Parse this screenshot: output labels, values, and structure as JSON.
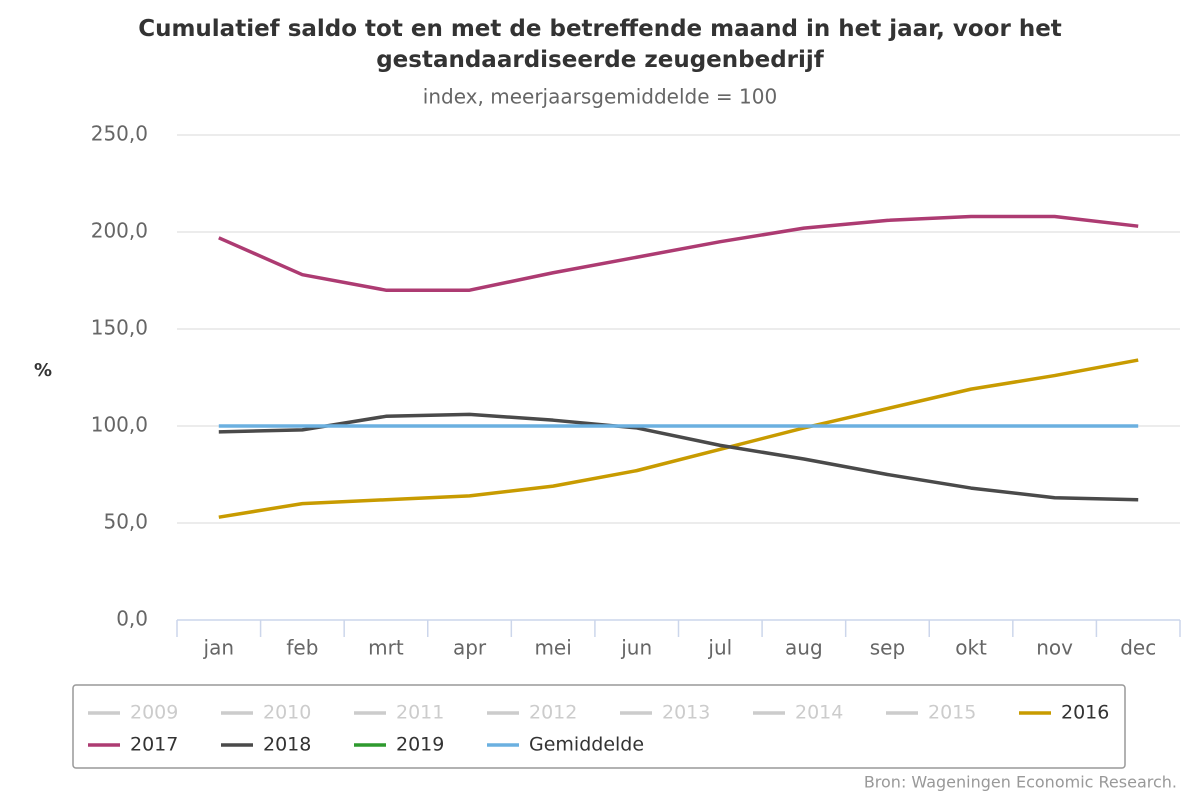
{
  "chart_data": {
    "type": "line",
    "title": "Cumulatief saldo tot en met de betreffende maand in het jaar, voor het gestandaardiseerde zeugenbedrijf",
    "subtitle": "index, meerjaarsgemiddelde = 100",
    "y_label": "%",
    "source": "Bron: Wageningen Economic Research.",
    "categories": [
      "jan",
      "feb",
      "mrt",
      "apr",
      "mei",
      "jun",
      "jul",
      "aug",
      "sep",
      "okt",
      "nov",
      "dec"
    ],
    "ylim": [
      0,
      250
    ],
    "yticks": [
      {
        "value": 0,
        "label": "0,0"
      },
      {
        "value": 50,
        "label": "50,0"
      },
      {
        "value": 100,
        "label": "100,0"
      },
      {
        "value": 150,
        "label": "150,0"
      },
      {
        "value": 200,
        "label": "200,0"
      },
      {
        "value": 250,
        "label": "250,0"
      }
    ],
    "grid": true,
    "legend": "bottom",
    "series": [
      {
        "name": "2009",
        "color": "#cccccc",
        "visible": false,
        "values": [
          null,
          null,
          null,
          null,
          null,
          null,
          null,
          null,
          null,
          null,
          null,
          null
        ]
      },
      {
        "name": "2010",
        "color": "#cccccc",
        "visible": false,
        "values": [
          null,
          null,
          null,
          null,
          null,
          null,
          null,
          null,
          null,
          null,
          null,
          null
        ]
      },
      {
        "name": "2011",
        "color": "#cccccc",
        "visible": false,
        "values": [
          null,
          null,
          null,
          null,
          null,
          null,
          null,
          null,
          null,
          null,
          null,
          null
        ]
      },
      {
        "name": "2012",
        "color": "#cccccc",
        "visible": false,
        "values": [
          null,
          null,
          null,
          null,
          null,
          null,
          null,
          null,
          null,
          null,
          null,
          null
        ]
      },
      {
        "name": "2013",
        "color": "#cccccc",
        "visible": false,
        "values": [
          null,
          null,
          null,
          null,
          null,
          null,
          null,
          null,
          null,
          null,
          null,
          null
        ]
      },
      {
        "name": "2014",
        "color": "#cccccc",
        "visible": false,
        "values": [
          null,
          null,
          null,
          null,
          null,
          null,
          null,
          null,
          null,
          null,
          null,
          null
        ]
      },
      {
        "name": "2015",
        "color": "#cccccc",
        "visible": false,
        "values": [
          null,
          null,
          null,
          null,
          null,
          null,
          null,
          null,
          null,
          null,
          null,
          null
        ]
      },
      {
        "name": "2016",
        "color": "#c89b00",
        "visible": true,
        "values": [
          53,
          60,
          62,
          64,
          69,
          77,
          88,
          99,
          109,
          119,
          126,
          134
        ]
      },
      {
        "name": "2017",
        "color": "#ad3b72",
        "visible": true,
        "values": [
          197,
          178,
          170,
          170,
          179,
          187,
          195,
          202,
          206,
          208,
          208,
          203
        ]
      },
      {
        "name": "2018",
        "color": "#4a4a4a",
        "visible": true,
        "values": [
          97,
          98,
          105,
          106,
          103,
          99,
          90,
          83,
          75,
          68,
          63,
          62
        ]
      },
      {
        "name": "2019",
        "color": "#2e9a2e",
        "visible": true,
        "values": [
          null,
          null,
          null,
          null,
          null,
          null,
          null,
          null,
          null,
          null,
          null,
          null
        ]
      },
      {
        "name": "Gemiddelde",
        "color": "#6bb0e0",
        "visible": true,
        "values": [
          100,
          100,
          100,
          100,
          100,
          100,
          100,
          100,
          100,
          100,
          100,
          100
        ]
      }
    ]
  }
}
